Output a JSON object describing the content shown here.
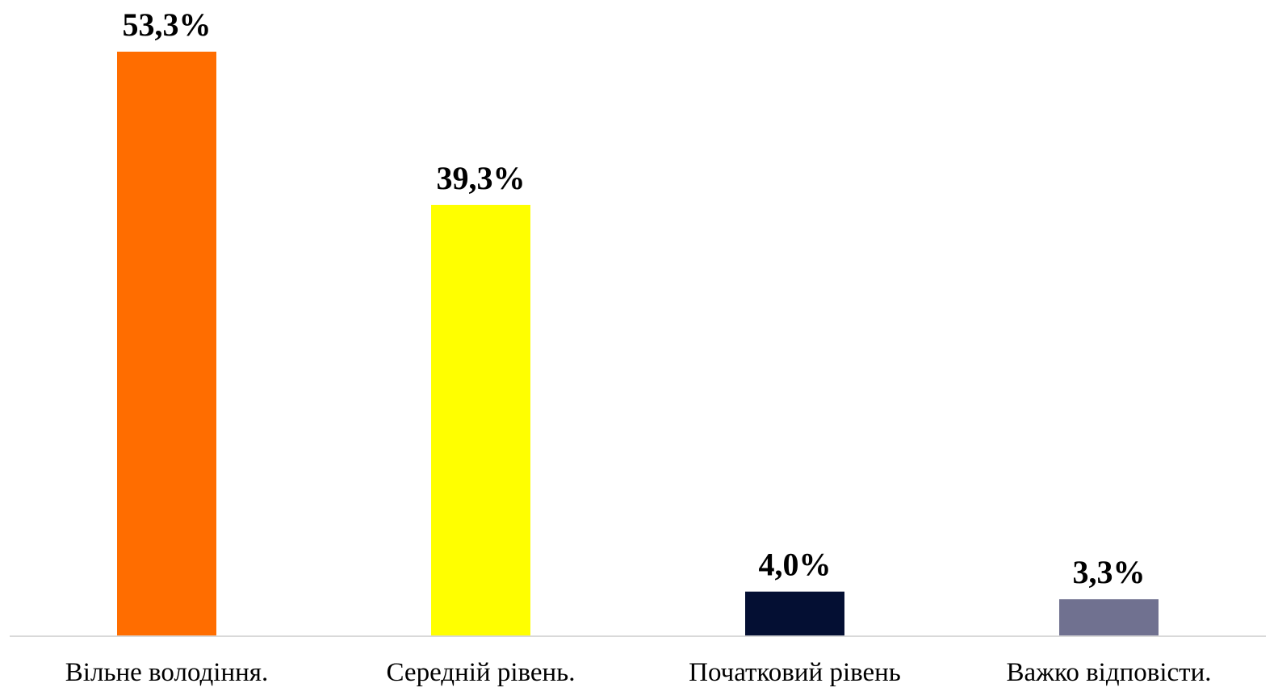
{
  "chart_data": {
    "type": "bar",
    "categories": [
      "Вільне володіння.",
      "Середній рівень.",
      "Початковий рівень",
      "Важко відповісти."
    ],
    "values": [
      53.3,
      39.3,
      4.0,
      3.3
    ],
    "value_labels": [
      "53,3%",
      "39,3%",
      "4,0%",
      "3,3%"
    ],
    "colors": [
      "#FF6D00",
      "#FFFF00",
      "#040F33",
      "#707190"
    ],
    "axis_color": "#D9D9D9",
    "title": "",
    "xlabel": "",
    "ylabel": "",
    "ylim": [
      0,
      53.3
    ],
    "grid": false,
    "legend": "none"
  }
}
